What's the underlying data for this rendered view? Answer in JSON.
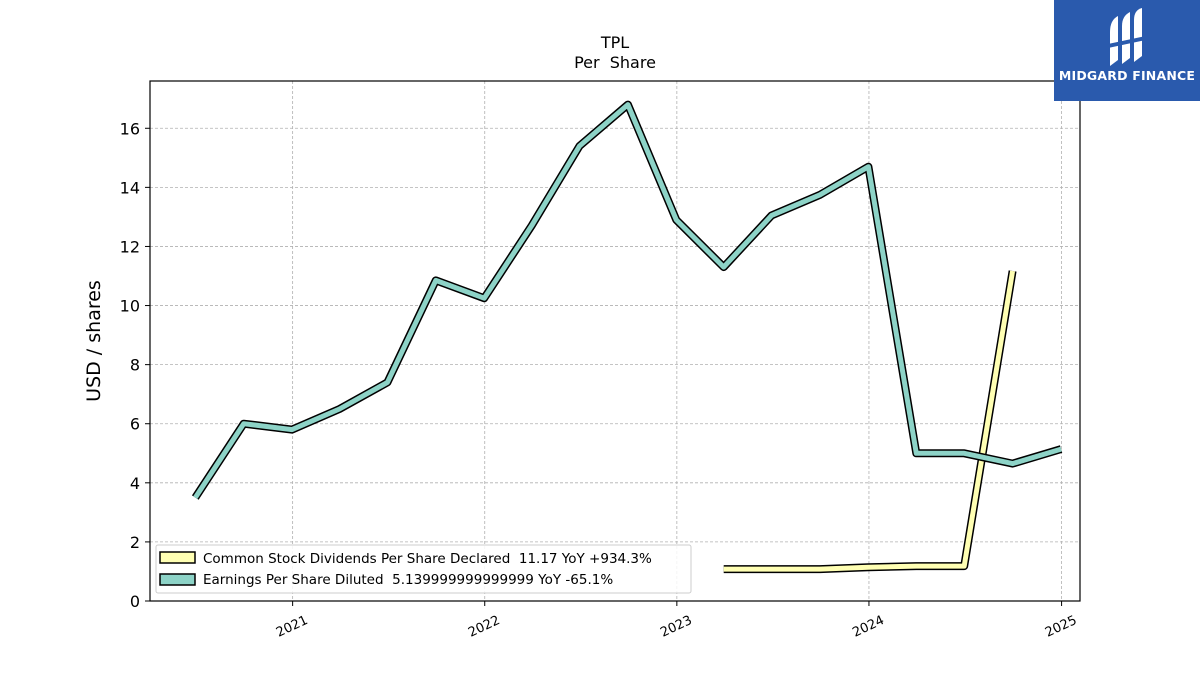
{
  "chart_data": {
    "type": "line",
    "title": "TPL",
    "subtitle": "Per  Share",
    "xlabel": "",
    "ylabel": "USD / shares",
    "ylim": [
      0,
      17.6
    ],
    "yticks": [
      0,
      2,
      4,
      6,
      8,
      10,
      12,
      14,
      16
    ],
    "xticks": [
      "2021",
      "2022",
      "2023",
      "2024",
      "2025"
    ],
    "grid": true,
    "legend_position": "lower-left",
    "series": [
      {
        "name": "Common Stock Dividends Per Share Declared",
        "legend_label": "Common Stock Dividends Per Share Declared  11.17 YoY +934.3%",
        "color": "#ffffb3",
        "x": [
          "2023-03-31",
          "2023-06-30",
          "2023-09-30",
          "2023-12-31",
          "2024-03-31",
          "2024-06-30",
          "2024-09-30"
        ],
        "values": [
          1.08,
          1.08,
          1.08,
          1.14,
          1.18,
          1.18,
          11.17
        ]
      },
      {
        "name": "Earnings Per Share Diluted",
        "legend_label": "Earnings Per Share Diluted  5.139999999999999 YoY -65.1%",
        "color": "#8dd3c7",
        "x": [
          "2020-06-30",
          "2020-09-30",
          "2020-12-31",
          "2021-03-31",
          "2021-06-30",
          "2021-09-30",
          "2021-12-31",
          "2022-03-31",
          "2022-06-30",
          "2022-09-30",
          "2022-12-31",
          "2023-03-31",
          "2023-06-30",
          "2023-09-30",
          "2023-12-31",
          "2024-03-31",
          "2024-06-30",
          "2024-09-30",
          "2024-12-31"
        ],
        "values": [
          3.5,
          6.0,
          5.8,
          6.5,
          7.4,
          10.85,
          10.25,
          12.7,
          15.4,
          16.8,
          12.9,
          11.3,
          13.05,
          13.75,
          14.7,
          5.0,
          5.0,
          4.65,
          5.14
        ]
      }
    ]
  },
  "logo": {
    "text": "MIDGARD FINANCE",
    "background": "#2a5aad"
  }
}
